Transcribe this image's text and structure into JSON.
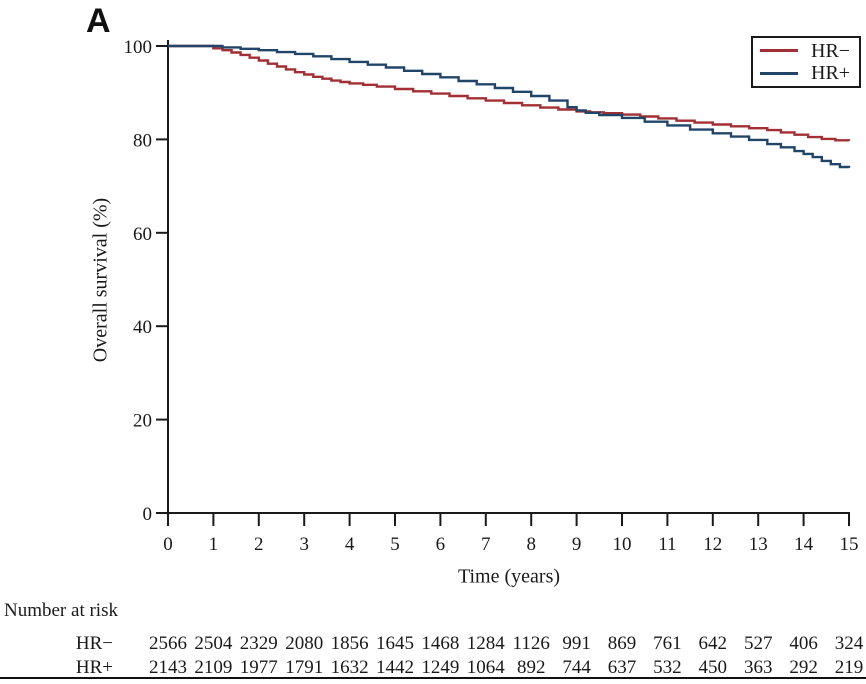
{
  "panel_label": "A",
  "chart_data": {
    "type": "line",
    "subtype": "kaplan-meier-step",
    "title": "",
    "xlabel": "Time (years)",
    "ylabel": "Overall survival (%)",
    "xlim": [
      0,
      15
    ],
    "ylim": [
      0,
      100
    ],
    "x_ticks": [
      0,
      1,
      2,
      3,
      4,
      5,
      6,
      7,
      8,
      9,
      10,
      11,
      12,
      13,
      14,
      15
    ],
    "y_ticks": [
      0,
      20,
      40,
      60,
      80,
      100
    ],
    "grid": false,
    "legend_position": "top-right",
    "axis_color": "#1a1a1a",
    "series": [
      {
        "name": "HR−",
        "color": "#a12f33",
        "points": [
          [
            0,
            100
          ],
          [
            0.8,
            100
          ],
          [
            1,
            99.5
          ],
          [
            1.2,
            99.1
          ],
          [
            1.4,
            98.6
          ],
          [
            1.6,
            98.1
          ],
          [
            1.8,
            97.5
          ],
          [
            2,
            96.9
          ],
          [
            2.2,
            96.2
          ],
          [
            2.4,
            95.6
          ],
          [
            2.6,
            95.0
          ],
          [
            2.8,
            94.4
          ],
          [
            3,
            93.9
          ],
          [
            3.2,
            93.4
          ],
          [
            3.4,
            93.0
          ],
          [
            3.6,
            92.6
          ],
          [
            3.8,
            92.3
          ],
          [
            4,
            92.0
          ],
          [
            4.3,
            91.7
          ],
          [
            4.6,
            91.3
          ],
          [
            5,
            90.8
          ],
          [
            5.4,
            90.3
          ],
          [
            5.8,
            89.8
          ],
          [
            6.2,
            89.3
          ],
          [
            6.6,
            88.8
          ],
          [
            7,
            88.3
          ],
          [
            7.4,
            87.8
          ],
          [
            7.8,
            87.3
          ],
          [
            8.2,
            86.8
          ],
          [
            8.6,
            86.4
          ],
          [
            9,
            86.0
          ],
          [
            9.3,
            85.8
          ],
          [
            9.6,
            85.6
          ],
          [
            10,
            85.3
          ],
          [
            10.4,
            84.9
          ],
          [
            10.8,
            84.5
          ],
          [
            11.2,
            84.0
          ],
          [
            11.6,
            83.6
          ],
          [
            12,
            83.2
          ],
          [
            12.4,
            82.8
          ],
          [
            12.8,
            82.4
          ],
          [
            13.2,
            82.0
          ],
          [
            13.5,
            81.5
          ],
          [
            13.8,
            81.0
          ],
          [
            14.1,
            80.5
          ],
          [
            14.4,
            80.1
          ],
          [
            14.7,
            79.8
          ],
          [
            15,
            79.7
          ]
        ]
      },
      {
        "name": "HR+",
        "color": "#204569",
        "points": [
          [
            0,
            100
          ],
          [
            0.9,
            100
          ],
          [
            1.2,
            99.7
          ],
          [
            1.6,
            99.4
          ],
          [
            2,
            99.1
          ],
          [
            2.4,
            98.7
          ],
          [
            2.8,
            98.3
          ],
          [
            3.2,
            97.8
          ],
          [
            3.6,
            97.2
          ],
          [
            4,
            96.6
          ],
          [
            4.4,
            96.0
          ],
          [
            4.8,
            95.4
          ],
          [
            5.2,
            94.7
          ],
          [
            5.6,
            94.0
          ],
          [
            6,
            93.3
          ],
          [
            6.4,
            92.5
          ],
          [
            6.8,
            91.8
          ],
          [
            7.2,
            91.0
          ],
          [
            7.6,
            90.2
          ],
          [
            8,
            89.3
          ],
          [
            8.4,
            88.3
          ],
          [
            8.8,
            86.9
          ],
          [
            9,
            86.2
          ],
          [
            9.2,
            85.7
          ],
          [
            9.5,
            85.2
          ],
          [
            10,
            84.6
          ],
          [
            10.5,
            83.8
          ],
          [
            11,
            83.0
          ],
          [
            11.5,
            82.1
          ],
          [
            12,
            81.3
          ],
          [
            12.4,
            80.6
          ],
          [
            12.8,
            79.9
          ],
          [
            13.2,
            79.0
          ],
          [
            13.5,
            78.3
          ],
          [
            13.8,
            77.5
          ],
          [
            14,
            76.9
          ],
          [
            14.2,
            76.2
          ],
          [
            14.4,
            75.4
          ],
          [
            14.6,
            74.7
          ],
          [
            14.8,
            74.1
          ],
          [
            15,
            73.9
          ]
        ]
      }
    ]
  },
  "legend": {
    "items": [
      {
        "label": "HR−",
        "color": "#a12f33"
      },
      {
        "label": "HR+",
        "color": "#204569"
      }
    ]
  },
  "risk_table": {
    "title": "Number at risk",
    "rows": [
      {
        "label": "HR−",
        "values": [
          2566,
          2504,
          2329,
          2080,
          1856,
          1645,
          1468,
          1284,
          1126,
          991,
          869,
          761,
          642,
          527,
          406,
          324
        ]
      },
      {
        "label": "HR+",
        "values": [
          2143,
          2109,
          1977,
          1791,
          1632,
          1442,
          1249,
          1064,
          892,
          744,
          637,
          532,
          450,
          363,
          292,
          219
        ]
      }
    ]
  }
}
